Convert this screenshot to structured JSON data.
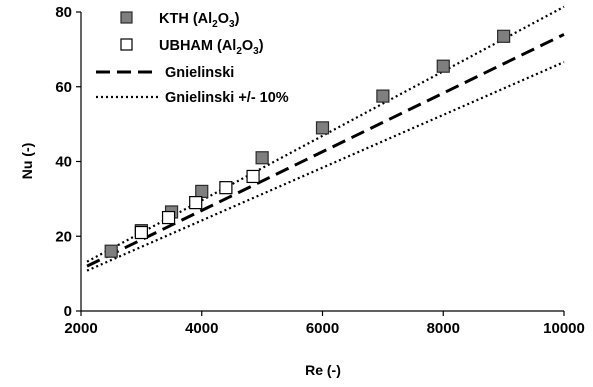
{
  "chart_data": {
    "type": "scatter",
    "xlabel": "Re (-)",
    "ylabel": "Nu (-)",
    "xlim": [
      2000,
      10000
    ],
    "ylim": [
      0,
      80
    ],
    "x_ticks": [
      "2000",
      "4000",
      "6000",
      "8000",
      "10000"
    ],
    "y_ticks": [
      "0",
      "20",
      "40",
      "60",
      "80"
    ],
    "grid": false,
    "legend_position": "top-left",
    "series": [
      {
        "name": "KTH (Al2O3)",
        "label_main": "KTH (Al",
        "label_sub1": "2",
        "label_mid": "O",
        "label_sub2": "3",
        "label_end": ")",
        "marker": "square-filled",
        "color": "#7f7f7f",
        "points": [
          {
            "x": 2500,
            "y": 16
          },
          {
            "x": 3000,
            "y": 21.5
          },
          {
            "x": 3500,
            "y": 26.5
          },
          {
            "x": 4000,
            "y": 32
          },
          {
            "x": 5000,
            "y": 41
          },
          {
            "x": 6000,
            "y": 49
          },
          {
            "x": 7000,
            "y": 57.5
          },
          {
            "x": 8000,
            "y": 65.5
          },
          {
            "x": 9000,
            "y": 73.5
          }
        ]
      },
      {
        "name": "UBHAM (Al2O3)",
        "label_main": "UBHAM (Al",
        "label_sub1": "2",
        "label_mid": "O",
        "label_sub2": "3",
        "label_end": ")",
        "marker": "square-open",
        "color": "#ffffff",
        "points": [
          {
            "x": 3000,
            "y": 21
          },
          {
            "x": 3450,
            "y": 25
          },
          {
            "x": 3900,
            "y": 29
          },
          {
            "x": 4400,
            "y": 33
          },
          {
            "x": 4850,
            "y": 36
          }
        ]
      },
      {
        "name": "Gnielinski",
        "style": "dashed",
        "color": "#000000",
        "points": [
          {
            "x": 2100,
            "y": 12
          },
          {
            "x": 10000,
            "y": 74
          }
        ]
      },
      {
        "name": "Gnielinski +/- 10%",
        "style": "dotted",
        "color": "#000000",
        "bands": [
          [
            {
              "x": 2100,
              "y": 13.2
            },
            {
              "x": 10000,
              "y": 81.4
            }
          ],
          [
            {
              "x": 2100,
              "y": 10.8
            },
            {
              "x": 10000,
              "y": 66.6
            }
          ]
        ]
      }
    ]
  }
}
